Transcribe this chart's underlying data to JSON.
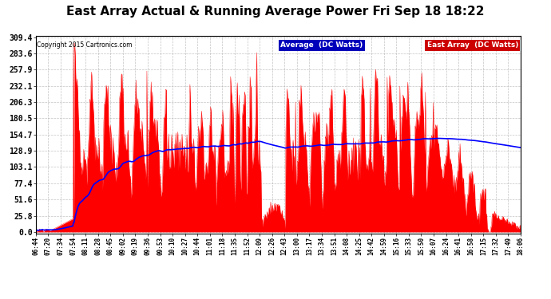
{
  "title": "East Array Actual & Running Average Power Fri Sep 18 18:22",
  "copyright": "Copyright 2015 Cartronics.com",
  "legend_labels": [
    "Average (DC Watts)",
    "East Array (DC Watts)"
  ],
  "legend_blue_bg": "#0000bb",
  "legend_red_bg": "#cc0000",
  "ytick_values": [
    0.0,
    25.8,
    51.6,
    77.4,
    103.1,
    128.9,
    154.7,
    180.5,
    206.3,
    232.1,
    257.9,
    283.6,
    309.4
  ],
  "ymax": 309.4,
  "ymin": 0.0,
  "background_color": "#ffffff",
  "plot_bg_color": "#ffffff",
  "grid_color": "#aaaaaa",
  "fill_color": "#ff0000",
  "line_color": "#0000ff",
  "title_fontsize": 11,
  "xtick_labels": [
    "06:44",
    "07:20",
    "07:34",
    "07:54",
    "08:11",
    "08:28",
    "08:45",
    "09:02",
    "09:19",
    "09:36",
    "09:53",
    "10:10",
    "10:27",
    "10:44",
    "11:01",
    "11:18",
    "11:35",
    "11:52",
    "12:09",
    "12:26",
    "12:43",
    "13:00",
    "13:17",
    "13:34",
    "13:51",
    "14:08",
    "14:25",
    "14:42",
    "14:59",
    "15:16",
    "15:33",
    "15:50",
    "16:07",
    "16:24",
    "16:41",
    "16:58",
    "17:15",
    "17:32",
    "17:49",
    "18:06"
  ]
}
